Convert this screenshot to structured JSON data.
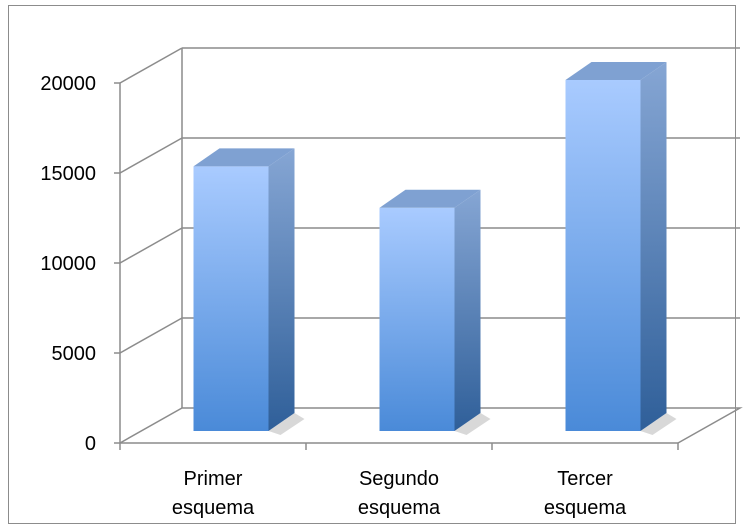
{
  "chart_data": {
    "type": "bar",
    "style": "3d-column",
    "categories": [
      [
        "Primer",
        "esquema"
      ],
      [
        "Segundo",
        "esquema"
      ],
      [
        "Tercer",
        "esquema"
      ]
    ],
    "values": [
      14700,
      12400,
      19500
    ],
    "title": "",
    "xlabel": "",
    "ylabel": "",
    "ylim": [
      0,
      20000
    ],
    "yticks": [
      "0",
      "5000",
      "10000",
      "15000",
      "20000"
    ],
    "grid": true,
    "legend": "none",
    "colors": {
      "bar_front_top": "#a9cbff",
      "bar_front_bottom": "#4a8ad8",
      "bar_side_top": "#86a6d4",
      "bar_side_bottom": "#2f5f99",
      "bar_top": "#7fa1d2",
      "grid": "#8c8c8c"
    }
  }
}
